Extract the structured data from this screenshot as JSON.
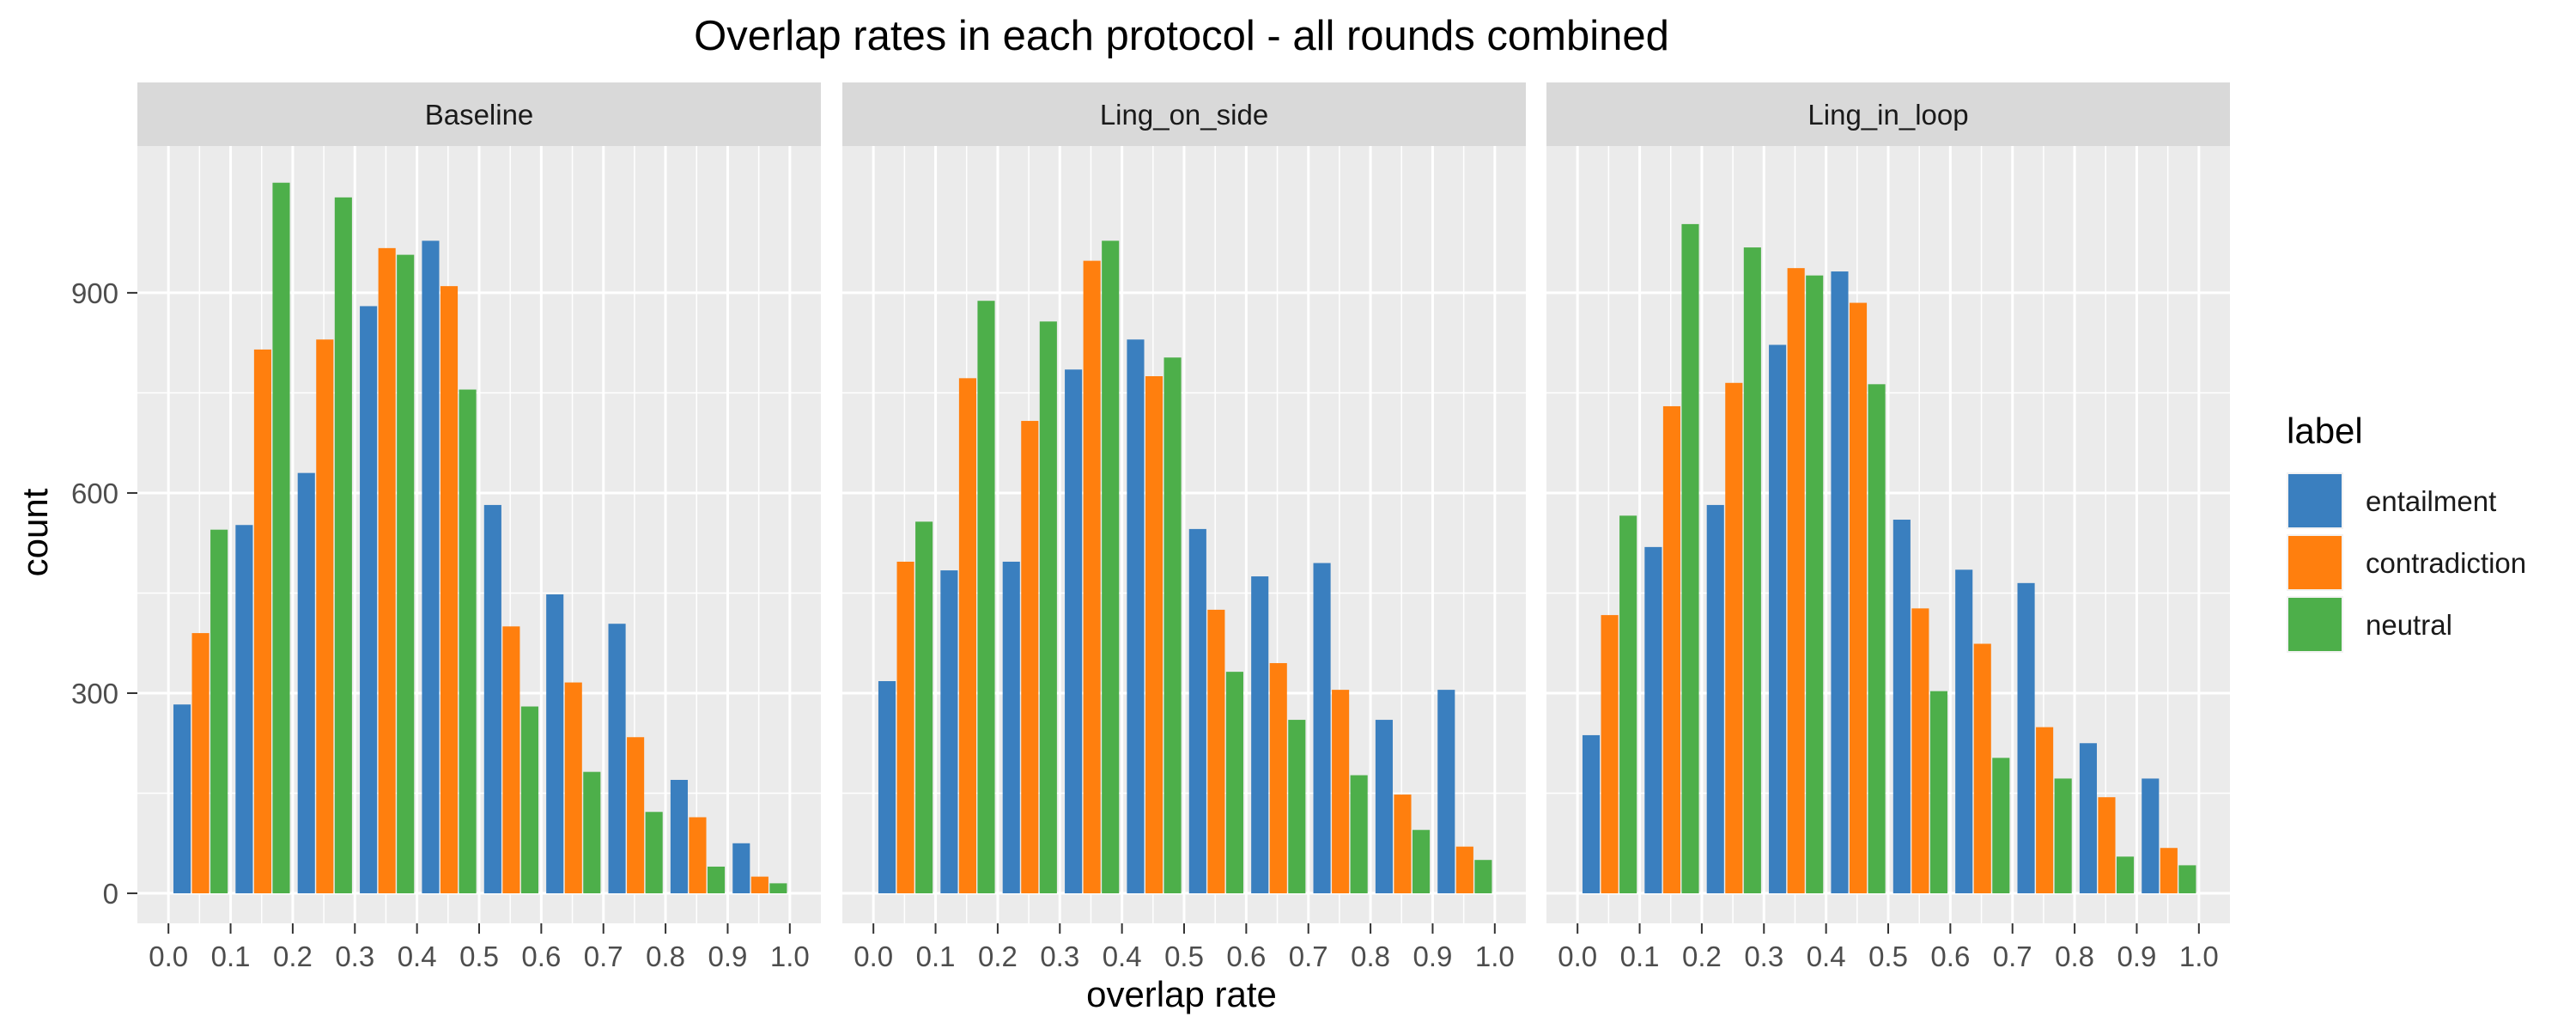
{
  "chart_data": {
    "type": "bar",
    "title": "Overlap rates in each protocol - all rounds combined",
    "xlabel": "overlap rate",
    "ylabel": "count",
    "legend": {
      "title": "label",
      "position": "right"
    },
    "grid": true,
    "xlim": [
      -0.05,
      1.05
    ],
    "ylim": [
      -45,
      1120
    ],
    "x_ticks": [
      "0.0",
      "0.1",
      "0.2",
      "0.3",
      "0.4",
      "0.5",
      "0.6",
      "0.7",
      "0.8",
      "0.9",
      "1.0"
    ],
    "y_ticks": [
      0,
      300,
      600,
      900
    ],
    "bin_starts": [
      0.0,
      0.1,
      0.2,
      0.3,
      0.4,
      0.5,
      0.6,
      0.7,
      0.8,
      0.9
    ],
    "series_meta": [
      {
        "name": "entailment",
        "color": "#3A7FBF"
      },
      {
        "name": "contradiction",
        "color": "#FF7F0E"
      },
      {
        "name": "neutral",
        "color": "#4DAF4A"
      }
    ],
    "panels": [
      {
        "name": "Baseline",
        "series": [
          {
            "name": "entailment",
            "values": [
              283,
              552,
              630,
              880,
              978,
              582,
              448,
              404,
              170,
              75
            ]
          },
          {
            "name": "contradiction",
            "values": [
              390,
              815,
              830,
              967,
              910,
              400,
              316,
              234,
              114,
              25
            ]
          },
          {
            "name": "neutral",
            "values": [
              545,
              1065,
              1043,
              957,
              755,
              280,
              182,
              122,
              40,
              15
            ]
          }
        ]
      },
      {
        "name": "Ling_on_side",
        "series": [
          {
            "name": "entailment",
            "values": [
              318,
              484,
              497,
              785,
              830,
              546,
              475,
              495,
              260,
              305
            ]
          },
          {
            "name": "contradiction",
            "values": [
              497,
              772,
              708,
              948,
              775,
              425,
              345,
              305,
              148,
              70
            ]
          },
          {
            "name": "neutral",
            "values": [
              557,
              888,
              857,
              978,
              803,
              332,
              260,
              177,
              95,
              50
            ]
          }
        ]
      },
      {
        "name": "Ling_in_loop",
        "series": [
          {
            "name": "entailment",
            "values": [
              237,
              519,
              582,
              822,
              932,
              560,
              485,
              465,
              225,
              172
            ]
          },
          {
            "name": "contradiction",
            "values": [
              417,
              730,
              765,
              937,
              885,
              427,
              374,
              249,
              144,
              68
            ]
          },
          {
            "name": "neutral",
            "values": [
              566,
              1003,
              968,
              926,
              763,
              303,
              203,
              172,
              55,
              42
            ]
          }
        ]
      }
    ]
  }
}
